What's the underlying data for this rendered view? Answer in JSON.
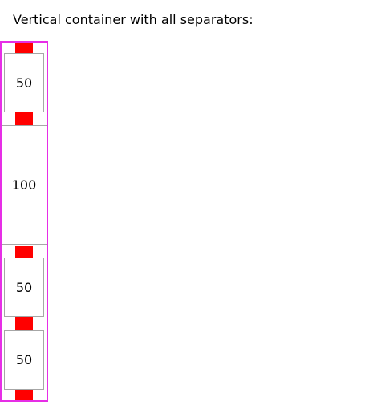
{
  "heading": "Vertical container with all separators:",
  "container": {
    "border_color": "#e62ee6",
    "spacer_color": "#ff0000",
    "separator_color": "#a6a6a6",
    "items": [
      {
        "label": "50"
      },
      {
        "label": "100"
      },
      {
        "label": "50"
      },
      {
        "label": "50"
      }
    ]
  }
}
